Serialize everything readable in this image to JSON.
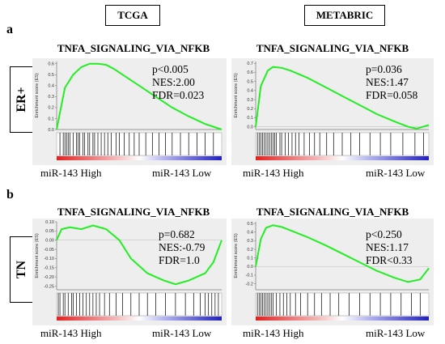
{
  "panel_labels": {
    "a": "a",
    "b": "b"
  },
  "datasets": {
    "left": "TCGA",
    "right": "METABRIC"
  },
  "rows": {
    "top": "ER+",
    "bottom": "TN"
  },
  "x_labels": {
    "high": "miR-143 High",
    "low": "miR-143 Low"
  },
  "colors": {
    "curve": "#22ee22",
    "high": "#e62020",
    "low": "#2020c0",
    "hits": "#000000"
  },
  "chart_data": [
    {
      "type": "line",
      "title": "TNFA_SIGNALING_VIA_NFKB",
      "ylabel": "Enrichment score (ES)",
      "ylim": [
        0,
        0.62
      ],
      "yticks": [
        "0.6",
        "0.5",
        "0.4",
        "0.3",
        "0.2",
        "0.1",
        "0.0"
      ],
      "ytick_values": [
        0.6,
        0.5,
        0.4,
        0.3,
        0.2,
        0.1,
        0.0
      ],
      "stats": [
        "p<0.005",
        "NES:2.00",
        "FDR=0.023"
      ],
      "x": [
        0,
        0.05,
        0.1,
        0.15,
        0.2,
        0.25,
        0.3,
        0.35,
        0.4,
        0.5,
        0.6,
        0.7,
        0.8,
        0.9,
        1.0
      ],
      "y": [
        0.0,
        0.38,
        0.5,
        0.57,
        0.6,
        0.6,
        0.59,
        0.55,
        0.5,
        0.4,
        0.3,
        0.2,
        0.12,
        0.05,
        0.0
      ],
      "hits": [
        0.02,
        0.04,
        0.05,
        0.06,
        0.07,
        0.08,
        0.1,
        0.12,
        0.13,
        0.14,
        0.16,
        0.17,
        0.19,
        0.2,
        0.22,
        0.23,
        0.25,
        0.27,
        0.29,
        0.31,
        0.33,
        0.36,
        0.38,
        0.41,
        0.44,
        0.47,
        0.5,
        0.54,
        0.58,
        0.62,
        0.66,
        0.7,
        0.75,
        0.8,
        0.85,
        0.9,
        0.95
      ]
    },
    {
      "type": "line",
      "title": "TNFA_SIGNALING_VIA_NFKB",
      "ylabel": "Enrichment score (ES)",
      "ylim": [
        -0.03,
        0.72
      ],
      "yticks": [
        "0.7",
        "0.6",
        "0.5",
        "0.4",
        "0.3",
        "0.2",
        "0.1",
        "0.0"
      ],
      "ytick_values": [
        0.7,
        0.6,
        0.5,
        0.4,
        0.3,
        0.2,
        0.1,
        0.0
      ],
      "stats": [
        "p=0.036",
        "NES:1.47",
        "FDR=0.058"
      ],
      "x": [
        0,
        0.03,
        0.07,
        0.1,
        0.15,
        0.2,
        0.3,
        0.4,
        0.5,
        0.6,
        0.7,
        0.8,
        0.88,
        0.93,
        1.0
      ],
      "y": [
        0.0,
        0.45,
        0.62,
        0.66,
        0.65,
        0.62,
        0.54,
        0.44,
        0.34,
        0.24,
        0.14,
        0.06,
        0.0,
        -0.02,
        0.02
      ],
      "hits": [
        0.01,
        0.02,
        0.03,
        0.04,
        0.05,
        0.06,
        0.07,
        0.08,
        0.09,
        0.1,
        0.11,
        0.12,
        0.14,
        0.15,
        0.17,
        0.19,
        0.21,
        0.23,
        0.25,
        0.28,
        0.31,
        0.34,
        0.37,
        0.41,
        0.45,
        0.5,
        0.55,
        0.6,
        0.66,
        0.72,
        0.78,
        0.85,
        0.92,
        0.97
      ]
    },
    {
      "type": "line",
      "title": "TNFA_SIGNALING_VIA_NFKB",
      "ylabel": "Enrichment score (ES)",
      "ylim": [
        -0.27,
        0.1
      ],
      "yticks": [
        "0.10",
        "0.05",
        "0.00",
        "-0.05",
        "-0.10",
        "-0.15",
        "-0.20",
        "-0.25"
      ],
      "ytick_values": [
        0.1,
        0.05,
        0.0,
        -0.05,
        -0.1,
        -0.15,
        -0.2,
        -0.25
      ],
      "stats": [
        "p=0.682",
        "NES:-0.79",
        "FDR=1.0"
      ],
      "x": [
        0,
        0.03,
        0.08,
        0.15,
        0.22,
        0.3,
        0.38,
        0.45,
        0.55,
        0.65,
        0.72,
        0.8,
        0.85,
        0.9,
        0.95,
        1.0
      ],
      "y": [
        0.0,
        0.06,
        0.07,
        0.06,
        0.08,
        0.06,
        0.0,
        -0.1,
        -0.18,
        -0.22,
        -0.24,
        -0.22,
        -0.2,
        -0.18,
        -0.12,
        0.0
      ],
      "hits": [
        0.01,
        0.02,
        0.04,
        0.05,
        0.07,
        0.09,
        0.1,
        0.12,
        0.14,
        0.16,
        0.18,
        0.2,
        0.22,
        0.24,
        0.26,
        0.29,
        0.32,
        0.36,
        0.4,
        0.45,
        0.5,
        0.55,
        0.6,
        0.66,
        0.72,
        0.78,
        0.83,
        0.87,
        0.9,
        0.92,
        0.94,
        0.96,
        0.98
      ]
    },
    {
      "type": "line",
      "title": "TNFA_SIGNALING_VIA_NFKB",
      "ylabel": "Enrichment score (ES)",
      "ylim": [
        -0.27,
        0.52
      ],
      "yticks": [
        "0.5",
        "0.4",
        "0.3",
        "0.2",
        "0.1",
        "0.0",
        "-0.1",
        "-0.2"
      ],
      "ytick_values": [
        0.5,
        0.4,
        0.3,
        0.2,
        0.1,
        0.0,
        -0.1,
        -0.2
      ],
      "stats": [
        "p<0.250",
        "NES:1.17",
        "FDR<0.33"
      ],
      "x": [
        0,
        0.03,
        0.06,
        0.1,
        0.15,
        0.2,
        0.3,
        0.4,
        0.5,
        0.6,
        0.7,
        0.8,
        0.88,
        0.95,
        1.0
      ],
      "y": [
        0.0,
        0.32,
        0.45,
        0.48,
        0.46,
        0.42,
        0.34,
        0.25,
        0.15,
        0.05,
        -0.05,
        -0.13,
        -0.18,
        -0.15,
        -0.02
      ],
      "hits": [
        0.01,
        0.02,
        0.03,
        0.04,
        0.05,
        0.06,
        0.07,
        0.08,
        0.09,
        0.1,
        0.12,
        0.14,
        0.16,
        0.18,
        0.2,
        0.23,
        0.26,
        0.3,
        0.34,
        0.38,
        0.43,
        0.48,
        0.54,
        0.6,
        0.66,
        0.72,
        0.78,
        0.84,
        0.9,
        0.95
      ]
    }
  ]
}
